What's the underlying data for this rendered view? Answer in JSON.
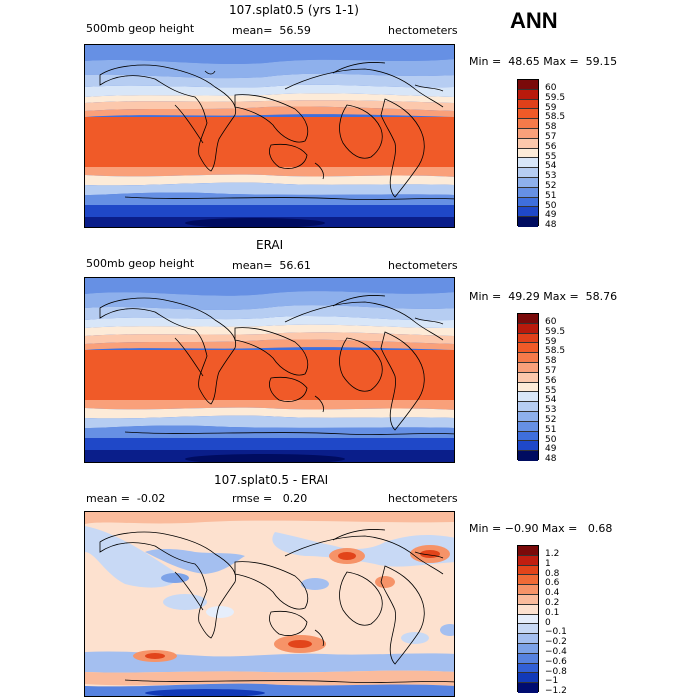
{
  "season": "ANN",
  "panels": [
    {
      "title": "107.splat0.5 (yrs 1-1)",
      "variable": "500mb geop height",
      "mean_label": "mean=  56.59",
      "units": "hectometers",
      "minmax": "Min =  48.65 Max =  59.15",
      "colorbar": [
        "60",
        "59.5",
        "59",
        "58.5",
        "58",
        "57",
        "56",
        "55",
        "54",
        "53",
        "52",
        "51",
        "50",
        "49",
        "48"
      ]
    },
    {
      "title": "ERAI",
      "variable": "500mb geop height",
      "mean_label": "mean=  56.61",
      "units": "hectometers",
      "minmax": "Min =  49.29 Max =  58.76",
      "colorbar": [
        "60",
        "59.5",
        "59",
        "58.5",
        "58",
        "57",
        "56",
        "55",
        "54",
        "53",
        "52",
        "51",
        "50",
        "49",
        "48"
      ]
    },
    {
      "title": "107.splat0.5 - ERAI",
      "mean_label": "mean =  -0.02",
      "rmse_label": "rmse =   0.20",
      "units": "hectometers",
      "minmax": "Min = −0.90 Max =   0.68",
      "colorbar": [
        "1.2",
        "1",
        "0.8",
        "0.6",
        "0.4",
        "0.2",
        "0.1",
        "0",
        "−0.1",
        "−0.2",
        "−0.4",
        "−0.6",
        "−0.8",
        "−1",
        "−1.2"
      ]
    }
  ],
  "colors": {
    "abs_scale": [
      "#7a0a0a",
      "#b81a0c",
      "#e0401a",
      "#f05a28",
      "#f57a4a",
      "#f9a07a",
      "#fcc8ac",
      "#fdebd8",
      "#d8e6f8",
      "#b6cdf2",
      "#8eb0ec",
      "#6690e4",
      "#3f6fdc",
      "#1f48c8",
      "#0a1e8a",
      "#000c60"
    ],
    "diff_scale": [
      "#7a0a0a",
      "#c01e10",
      "#e2441a",
      "#f06a36",
      "#f69368",
      "#fabb9c",
      "#fde1cf",
      "#e6eefb",
      "#c8d9f5",
      "#a4bff0",
      "#7ca2e8",
      "#5682e0",
      "#3260d6",
      "#123ab8",
      "#000c70"
    ]
  }
}
